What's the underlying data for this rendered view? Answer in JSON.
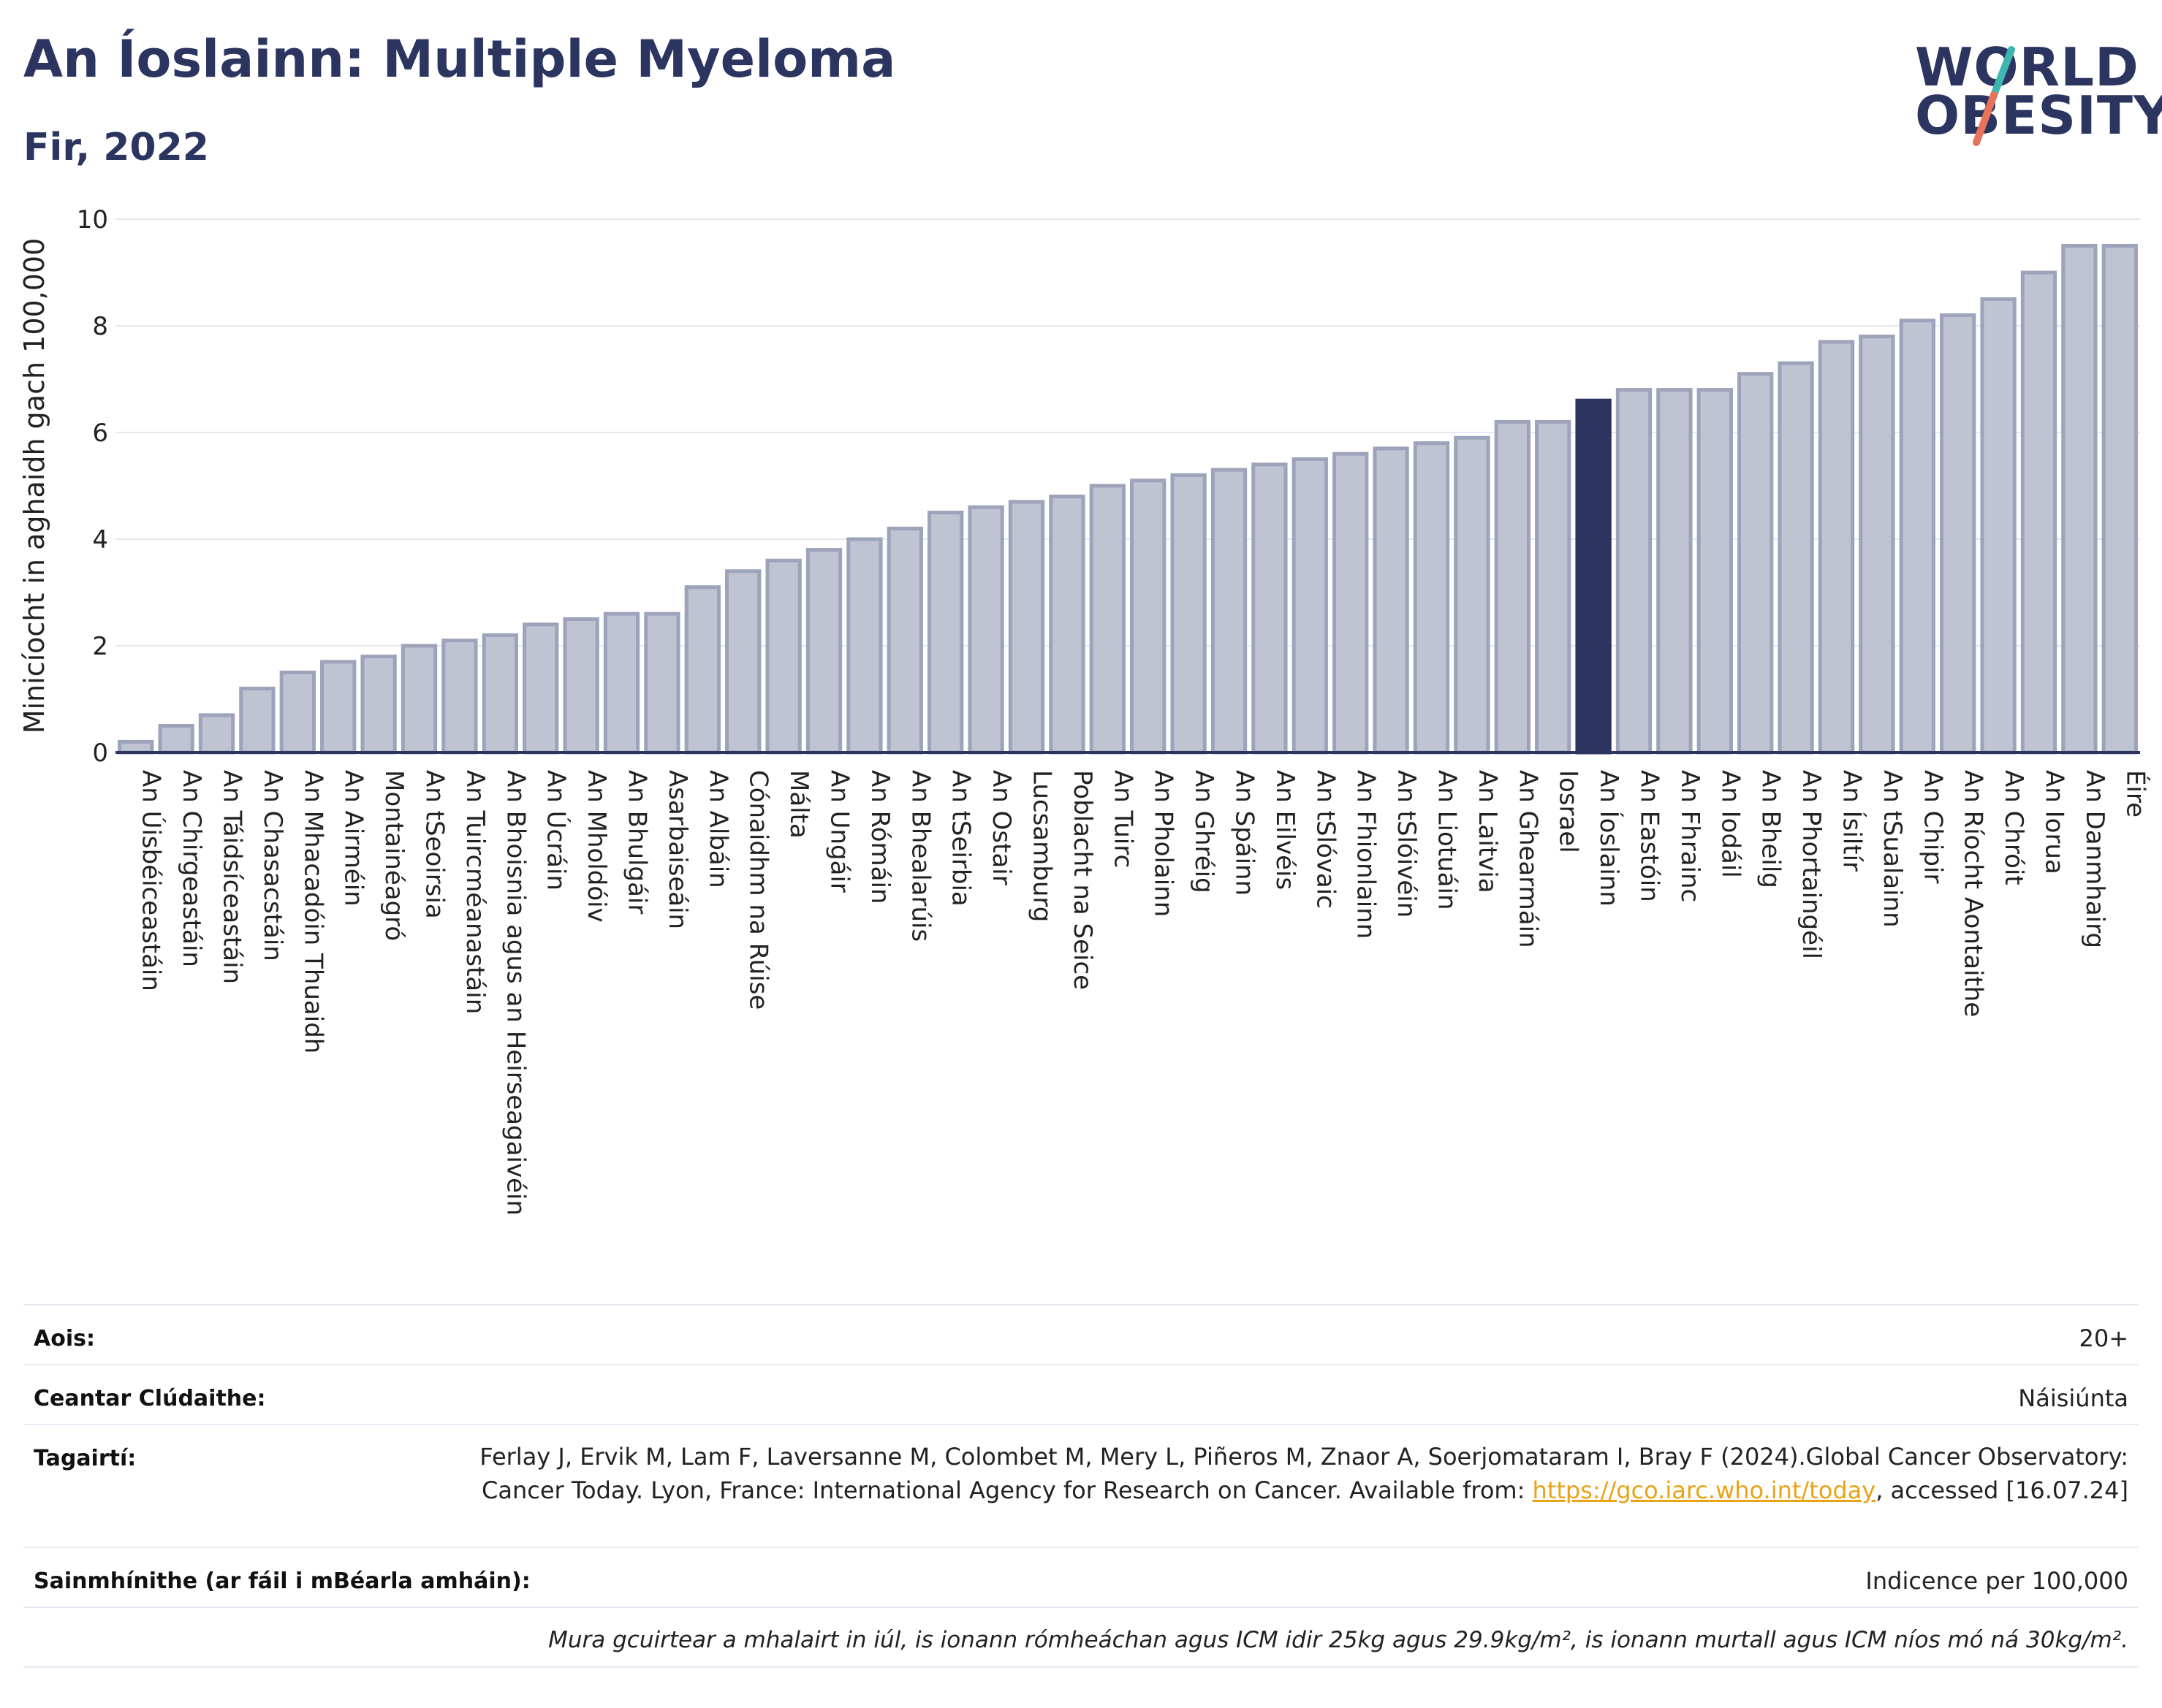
{
  "header": {
    "title": "An Íoslainn: Multiple Myeloma",
    "subtitle": "Fir, 2022"
  },
  "logo": {
    "line1": "WORLD",
    "line2": "OBESITY",
    "colors": {
      "text": "#2b3560",
      "slash_top": "#3fb6b0",
      "slash_bottom": "#e8735a"
    }
  },
  "colors": {
    "bar_fill": "#bfc3d2",
    "bar_stroke": "#9da3bb",
    "highlight": "#2b3560",
    "grid": "#e6e8ef",
    "axis": "#2b3560",
    "link": "#e8a317"
  },
  "chart_data": {
    "type": "bar",
    "ylabel": "Minicíocht in aghaidh gach 100,000",
    "ylim": [
      0,
      10
    ],
    "yticks": [
      0,
      2,
      4,
      6,
      8,
      10
    ],
    "grid": true,
    "highlight_category": "An Íoslainn",
    "categories": [
      "An Úisbéiceastáin",
      "An Chirgeastáin",
      "An Táidsíceastáin",
      "An Chasacstáin",
      "An Mhacadóin Thuaidh",
      "An Airméin",
      "Montainéagró",
      "An tSeoirsia",
      "An Tuircméanastáin",
      "An Bhoisnia agus an Heirseagaivéin",
      "An Úcráin",
      "An Mholdóiv",
      "An Bhulgáir",
      "Asarbaiseáin",
      "An Albáin",
      "Cónaidhm na Rúise",
      "Málta",
      "An Ungáir",
      "An Rómáin",
      "An Bhealarúis",
      "An tSeirbia",
      "An Ostair",
      "Lucsamburg",
      "Poblacht na Seice",
      "An Tuirc",
      "An Pholainn",
      "An Ghréig",
      "An Spáinn",
      "An Eilvéis",
      "An tSlóvaic",
      "An Fhionlainn",
      "An tSlóivéin",
      "An Liotuáin",
      "An Laitvia",
      "An Ghearmáin",
      "Iosrael",
      "An Íoslainn",
      "An Eastóin",
      "An Fhrainc",
      "An Iodáil",
      "An Bheilg",
      "An Phortaingéil",
      "An Ísiltír",
      "An tSualainn",
      "An Chipir",
      "An Ríocht Aontaithe",
      "An Chróit",
      "An Iorua",
      "An Danmhairg",
      "Éire"
    ],
    "values": [
      0.2,
      0.5,
      0.7,
      1.2,
      1.5,
      1.7,
      1.8,
      2.0,
      2.1,
      2.2,
      2.4,
      2.5,
      2.6,
      2.6,
      3.1,
      3.4,
      3.6,
      3.8,
      4.0,
      4.2,
      4.5,
      4.6,
      4.7,
      4.8,
      5.0,
      5.1,
      5.2,
      5.3,
      5.4,
      5.5,
      5.6,
      5.7,
      5.8,
      5.9,
      6.2,
      6.2,
      6.6,
      6.8,
      6.8,
      6.8,
      7.1,
      7.3,
      7.7,
      7.8,
      8.1,
      8.2,
      8.5,
      9.0,
      9.5,
      9.5
    ]
  },
  "info": {
    "age_label": "Aois:",
    "age_value": "20+",
    "area_label": "Ceantar Clúdaithe:",
    "area_value": "Náisiúnta",
    "ref_label": "Tagairtí:",
    "ref_text_1": "Ferlay J, Ervik M, Lam F, Laversanne M, Colombet M, Mery L, Piñeros M, Znaor A, Soerjomataram I, Bray F (2024).Global Cancer Observatory: Cancer Today. Lyon, France: International Agency for Research on Cancer. Available from: ",
    "ref_link": "https://gco.iarc.who.int/today",
    "ref_text_2": ", accessed [16.07.24]",
    "def_label": "Sainmhínithe (ar fáil i mBéarla amháin):",
    "def_value": "Indicence per 100,000",
    "footnote": "Mura gcuirtear a mhalairt in iúl, is ionann rómheáchan agus ICM idir 25kg agus 29.9kg/m², is ionann murtall agus ICM níos mó ná 30kg/m²."
  }
}
